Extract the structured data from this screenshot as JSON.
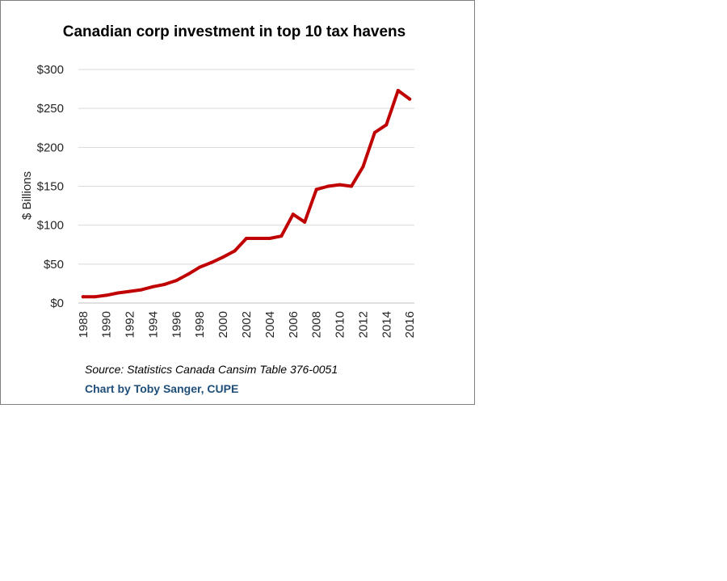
{
  "chart_data": {
    "type": "line",
    "title": "Canadian  corp investment in top 10 tax havens",
    "ylabel": "$ Billions",
    "xlabel": "",
    "ylim": [
      0,
      300
    ],
    "yticks": [
      "$0",
      "$50",
      "$100",
      "$150",
      "$200",
      "$250",
      "$300"
    ],
    "xticks": [
      "1988",
      "1990",
      "1992",
      "1994",
      "1996",
      "1998",
      "2000",
      "2002",
      "2004",
      "2006",
      "2008",
      "2010",
      "2012",
      "2014",
      "2016"
    ],
    "grid": true,
    "legend": "none",
    "series": [
      {
        "color": "#c00000",
        "x": [
          1988,
          1989,
          1990,
          1991,
          1992,
          1993,
          1994,
          1995,
          1996,
          1997,
          1998,
          1999,
          2000,
          2001,
          2002,
          2003,
          2004,
          2005,
          2006,
          2007,
          2008,
          2009,
          2010,
          2011,
          2012,
          2013,
          2014,
          2015,
          2016
        ],
        "values": [
          8,
          8,
          10,
          13,
          15,
          17,
          21,
          24,
          29,
          37,
          46,
          52,
          59,
          67,
          83,
          83,
          83,
          86,
          114,
          104,
          146,
          150,
          152,
          150,
          175,
          219,
          229,
          273,
          262
        ]
      }
    ],
    "source": "Source: Statistics Canada Cansim Table 376-0051",
    "credit": "Chart by Toby Sanger, CUPE"
  }
}
